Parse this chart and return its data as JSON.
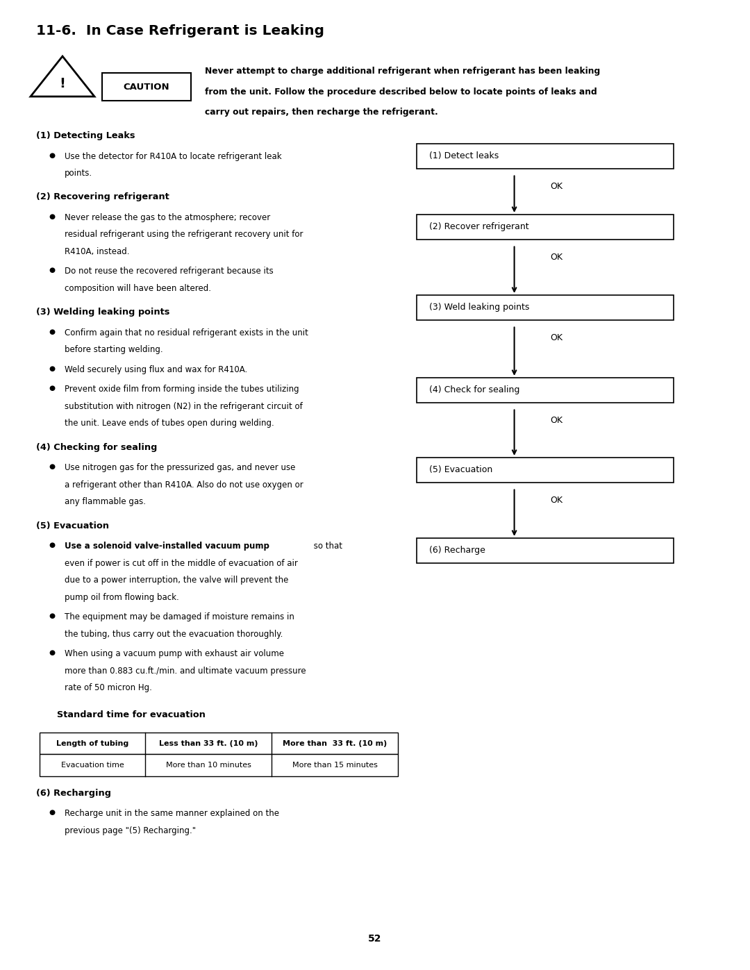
{
  "title": "11-6.  In Case Refrigerant is Leaking",
  "bg_color": "#ffffff",
  "page_number": "52",
  "caution_text_line1": "Never attempt to charge additional refrigerant when refrigerant has been leaking",
  "caution_text_line2": "from the unit. Follow the procedure described below to locate points of leaks and",
  "caution_text_line3": "carry out repairs, then recharge the refrigerant.",
  "sec1_heading": "(1) Detecting Leaks",
  "sec1_bullets": [
    [
      "Use the detector for R410A to locate refrigerant leak",
      "points."
    ]
  ],
  "sec2_heading": "(2) Recovering refrigerant",
  "sec2_bullets": [
    [
      "Never release the gas to the atmosphere; recover",
      "residual refrigerant using the refrigerant recovery unit for",
      "R410A, instead."
    ],
    [
      "Do not reuse the recovered refrigerant because its",
      "composition will have been altered."
    ]
  ],
  "sec3_heading": "(3) Welding leaking points",
  "sec3_bullets": [
    [
      "Confirm again that no residual refrigerant exists in the unit",
      "before starting welding."
    ],
    [
      "Weld securely using flux and wax for R410A."
    ],
    [
      "Prevent oxide film from forming inside the tubes utilizing",
      "substitution with nitrogen (N2) in the refrigerant circuit of",
      "the unit. Leave ends of tubes open during welding."
    ]
  ],
  "sec4_heading": "(4) Checking for sealing",
  "sec4_bullets": [
    [
      "Use nitrogen gas for the pressurized gas, and never use",
      "a refrigerant other than R410A. Also do not use oxygen or",
      "any flammable gas."
    ]
  ],
  "sec5_heading": "(5) Evacuation",
  "sec5_bullet1_bold": "Use a solenoid valve-installed vacuum pump",
  "sec5_bullet1_normal": " so that",
  "sec5_bullet1_rest": [
    "even if power is cut off in the middle of evacuation of air",
    "due to a power interruption, the valve will prevent the",
    "pump oil from flowing back."
  ],
  "sec5_bullets_rest": [
    [
      "The equipment may be damaged if moisture remains in",
      "the tubing, thus carry out the evacuation thoroughly."
    ],
    [
      "When using a vacuum pump with exhaust air volume",
      "more than 0.883 cu.ft./min. and ultimate vacuum pressure",
      "rate of 50 micron Hg."
    ]
  ],
  "evac_table_heading": "Standard time for evacuation",
  "evac_table_headers": [
    "Length of tubing",
    "Less than 33 ft. (10 m)",
    "More than  33 ft. (10 m)"
  ],
  "evac_table_row": [
    "Evacuation time",
    "More than 10 minutes",
    "More than 15 minutes"
  ],
  "sec6_heading": "(6) Recharging",
  "sec6_bullets": [
    [
      "Recharge unit in the same manner explained on the",
      "previous page \"(5) Recharging.\""
    ]
  ],
  "flowchart_boxes": [
    "(1) Detect leaks",
    "(2) Recover refrigerant",
    "(3) Weld leaking points",
    "(4) Check for sealing",
    "(5) Evacuation",
    "(6) Recharge"
  ],
  "ok_labels": [
    "OK",
    "OK",
    "OK",
    "OK",
    "OK"
  ]
}
